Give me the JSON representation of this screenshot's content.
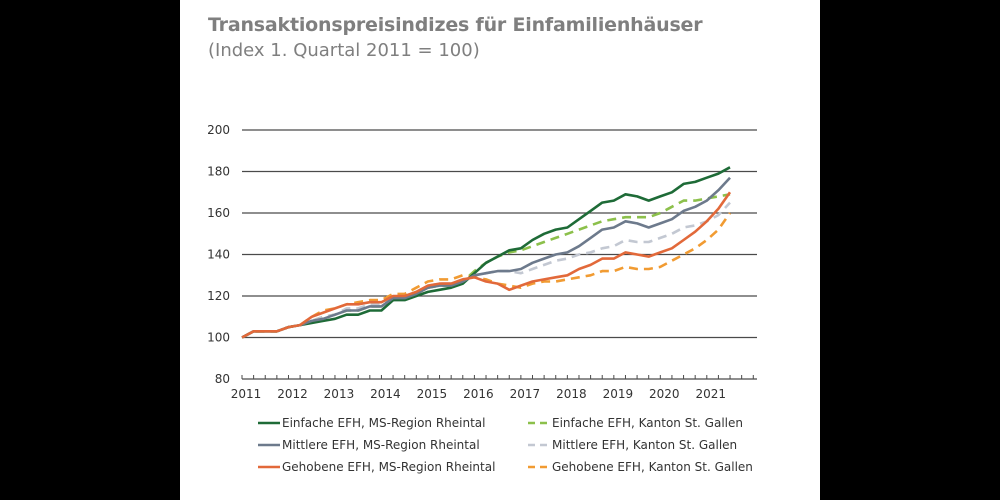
{
  "chart_data": {
    "type": "line",
    "title": "Transaktionspreisindizes für Einfamilienhäuser",
    "subtitle": "(Index 1. Quartal 2011 = 100)",
    "xlabel": "",
    "ylabel": "",
    "ylim": [
      80,
      200
    ],
    "yticks": [
      80,
      100,
      120,
      140,
      160,
      180,
      200
    ],
    "xticks": [
      "2011",
      "2012",
      "2013",
      "2014",
      "2015",
      "2016",
      "2017",
      "2018",
      "2019",
      "2020",
      "2021"
    ],
    "x_frequency": "quarterly",
    "x_start": "2011Q1",
    "grid": "horizontal",
    "legend_position": "bottom",
    "series": [
      {
        "name": "Einfache EFH, MS-Region Rheintal",
        "color": "#1e6b37",
        "dash": false,
        "values": [
          100,
          103,
          103,
          103,
          105,
          106,
          107,
          108,
          109,
          111,
          111,
          113,
          113,
          118,
          118,
          120,
          122,
          123,
          124,
          126,
          131,
          136,
          139,
          142,
          143,
          147,
          150,
          152,
          153,
          157,
          161,
          165,
          166,
          169,
          168,
          166,
          168,
          170,
          174,
          175,
          177,
          179,
          182
        ]
      },
      {
        "name": "Einfache EFH, Kanton St. Gallen",
        "color": "#8cc04b",
        "dash": true,
        "values": [
          100,
          103,
          103,
          103,
          105,
          106,
          108,
          110,
          111,
          113,
          113,
          115,
          115,
          118,
          119,
          121,
          124,
          125,
          125,
          127,
          132,
          136,
          139,
          141,
          142,
          144,
          146,
          148,
          150,
          152,
          154,
          156,
          157,
          158,
          158,
          158,
          160,
          163,
          166,
          166,
          167,
          168,
          169
        ]
      },
      {
        "name": "Mittlere EFH, MS-Region Rheintal",
        "color": "#6d7a8c",
        "dash": false,
        "values": [
          100,
          103,
          103,
          103,
          105,
          106,
          108,
          109,
          111,
          113,
          113,
          115,
          115,
          119,
          119,
          121,
          124,
          125,
          125,
          127,
          130,
          131,
          132,
          132,
          133,
          136,
          138,
          140,
          141,
          144,
          148,
          152,
          153,
          156,
          155,
          153,
          155,
          157,
          161,
          163,
          166,
          171,
          177
        ]
      },
      {
        "name": "Mittlere EFH, Kanton St. Gallen",
        "color": "#c3c8d2",
        "dash": true,
        "values": [
          100,
          103,
          103,
          103,
          105,
          106,
          108,
          110,
          111,
          114,
          114,
          116,
          116,
          119,
          120,
          122,
          125,
          126,
          126,
          128,
          130,
          131,
          132,
          132,
          131,
          133,
          135,
          137,
          138,
          140,
          141,
          143,
          144,
          147,
          146,
          146,
          148,
          150,
          153,
          154,
          156,
          159,
          165
        ]
      },
      {
        "name": "Gehobene EFH, MS-Region Rheintal",
        "color": "#e2693a",
        "dash": false,
        "values": [
          100,
          103,
          103,
          103,
          105,
          106,
          110,
          112,
          114,
          116,
          116,
          117,
          117,
          120,
          120,
          122,
          125,
          126,
          126,
          128,
          129,
          127,
          126,
          123,
          125,
          127,
          128,
          129,
          130,
          133,
          135,
          138,
          138,
          141,
          140,
          139,
          141,
          143,
          147,
          151,
          156,
          162,
          170
        ]
      },
      {
        "name": "Gehobene EFH, Kanton St. Gallen",
        "color": "#f19b32",
        "dash": true,
        "values": [
          100,
          103,
          103,
          103,
          105,
          106,
          110,
          113,
          114,
          116,
          117,
          118,
          118,
          121,
          121,
          124,
          127,
          128,
          128,
          130,
          129,
          128,
          126,
          125,
          124,
          126,
          127,
          127,
          128,
          129,
          130,
          132,
          132,
          134,
          133,
          133,
          134,
          137,
          140,
          143,
          147,
          152,
          160
        ]
      }
    ]
  }
}
